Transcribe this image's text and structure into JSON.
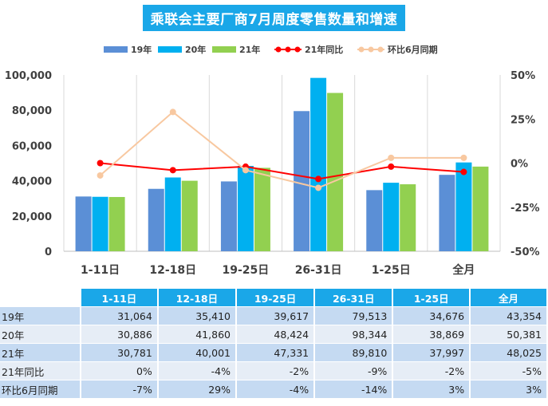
{
  "chart_data": {
    "type": "bar",
    "title": "乘联会主要厂商7月周度零售数量和增速",
    "categories": [
      "1-11日",
      "12-18日",
      "19-25日",
      "26-31日",
      "1-25日",
      "全月"
    ],
    "series": [
      {
        "name": "19年",
        "values": [
          31064,
          35410,
          39617,
          79513,
          34676,
          43354
        ],
        "color": "#5b8fd6"
      },
      {
        "name": "20年",
        "values": [
          30886,
          41860,
          48424,
          98344,
          38869,
          50381
        ],
        "color": "#00b0f0"
      },
      {
        "name": "21年",
        "values": [
          30781,
          40001,
          47331,
          89810,
          37997,
          48025
        ],
        "color": "#92d050"
      }
    ],
    "line_series": [
      {
        "name": "21年同比",
        "values": [
          0,
          -4,
          -2,
          -9,
          -2,
          -5
        ],
        "color": "#ff0000",
        "labels": [
          "0%",
          "-4%",
          "-2%",
          "-9%",
          "-2%",
          "-5%"
        ]
      },
      {
        "name": "环比6月同期",
        "values": [
          -7,
          29,
          -4,
          -14,
          3,
          3
        ],
        "color": "#f8c8a0",
        "labels": [
          "-7%",
          "29%",
          "-4%",
          "-14%",
          "3%",
          "3%"
        ]
      }
    ],
    "y_left": {
      "min": 0,
      "max": 100000,
      "ticks": [
        0,
        20000,
        40000,
        60000,
        80000,
        100000
      ],
      "tick_labels": [
        "0",
        "20,000",
        "40,000",
        "60,000",
        "80,000",
        "100,000"
      ]
    },
    "y_right": {
      "min": -50,
      "max": 50,
      "ticks": [
        -50,
        -25,
        0,
        25,
        50
      ],
      "tick_labels": [
        "-50%",
        "-25%",
        "0%",
        "25%",
        "50%"
      ]
    },
    "legend_position": "top"
  },
  "table": {
    "header": [
      "1-11日",
      "12-18日",
      "19-25日",
      "26-31日",
      "1-25日",
      "全月"
    ],
    "rows": [
      {
        "label": "19年",
        "cells": [
          "31,064",
          "35,410",
          "39,617",
          "79,513",
          "34,676",
          "43,354"
        ]
      },
      {
        "label": "20年",
        "cells": [
          "30,886",
          "41,860",
          "48,424",
          "98,344",
          "38,869",
          "50,381"
        ]
      },
      {
        "label": "21年",
        "cells": [
          "30,781",
          "40,001",
          "47,331",
          "89,810",
          "37,997",
          "48,025"
        ]
      },
      {
        "label": "21年同比",
        "cells": [
          "0%",
          "-4%",
          "-2%",
          "-9%",
          "-2%",
          "-5%"
        ]
      },
      {
        "label": "环比6月同期",
        "cells": [
          "-7%",
          "29%",
          "-4%",
          "-14%",
          "3%",
          "3%"
        ]
      }
    ]
  }
}
